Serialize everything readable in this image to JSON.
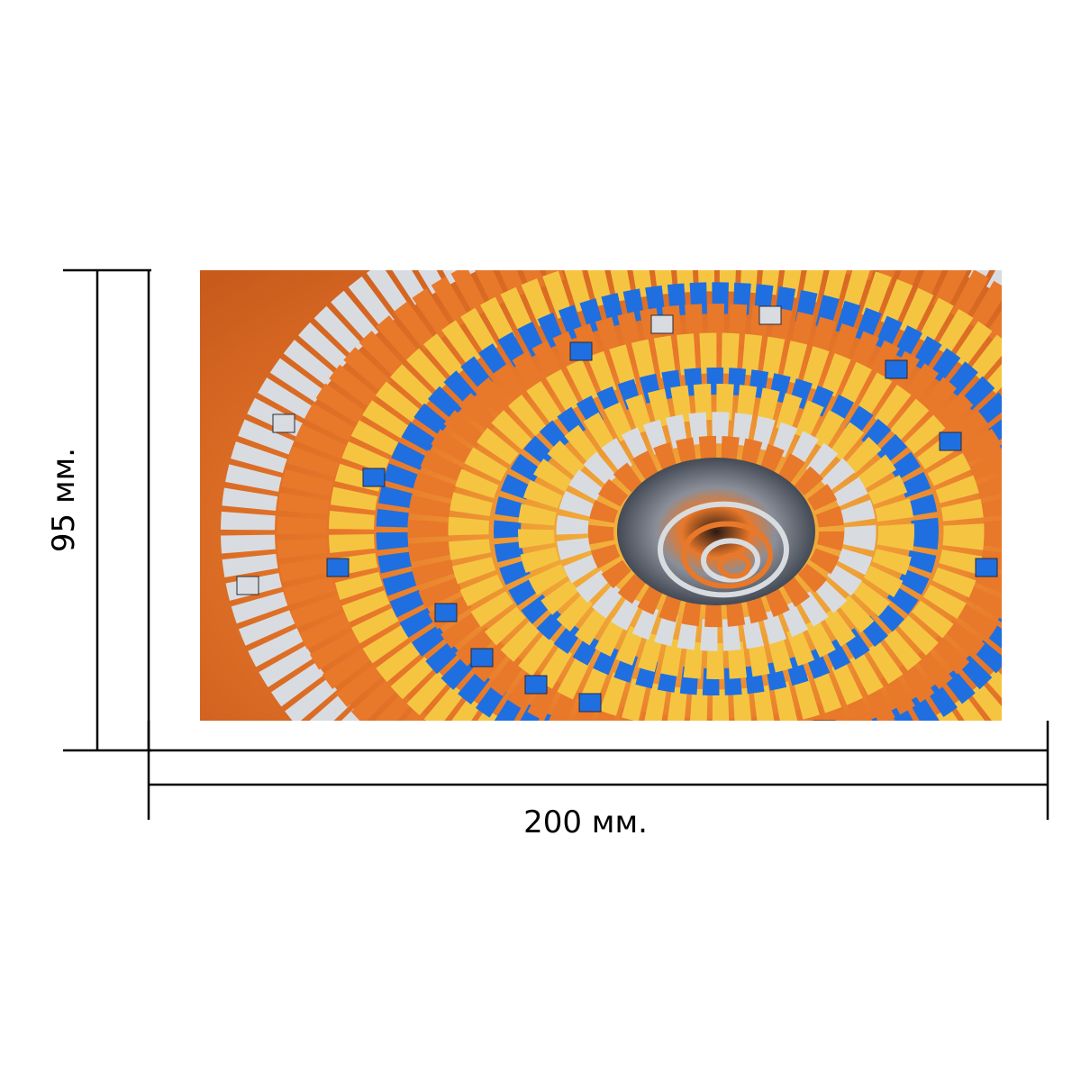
{
  "dimensions": {
    "height_label": "95 мм.",
    "width_label": "200 мм."
  },
  "artwork": {
    "subject": "fractal-vortex",
    "palette": {
      "orange": "#e8782a",
      "yellow": "#f5c542",
      "blue": "#1f6fe0",
      "silver": "#d8dce0",
      "dark": "#2a2a35"
    }
  }
}
